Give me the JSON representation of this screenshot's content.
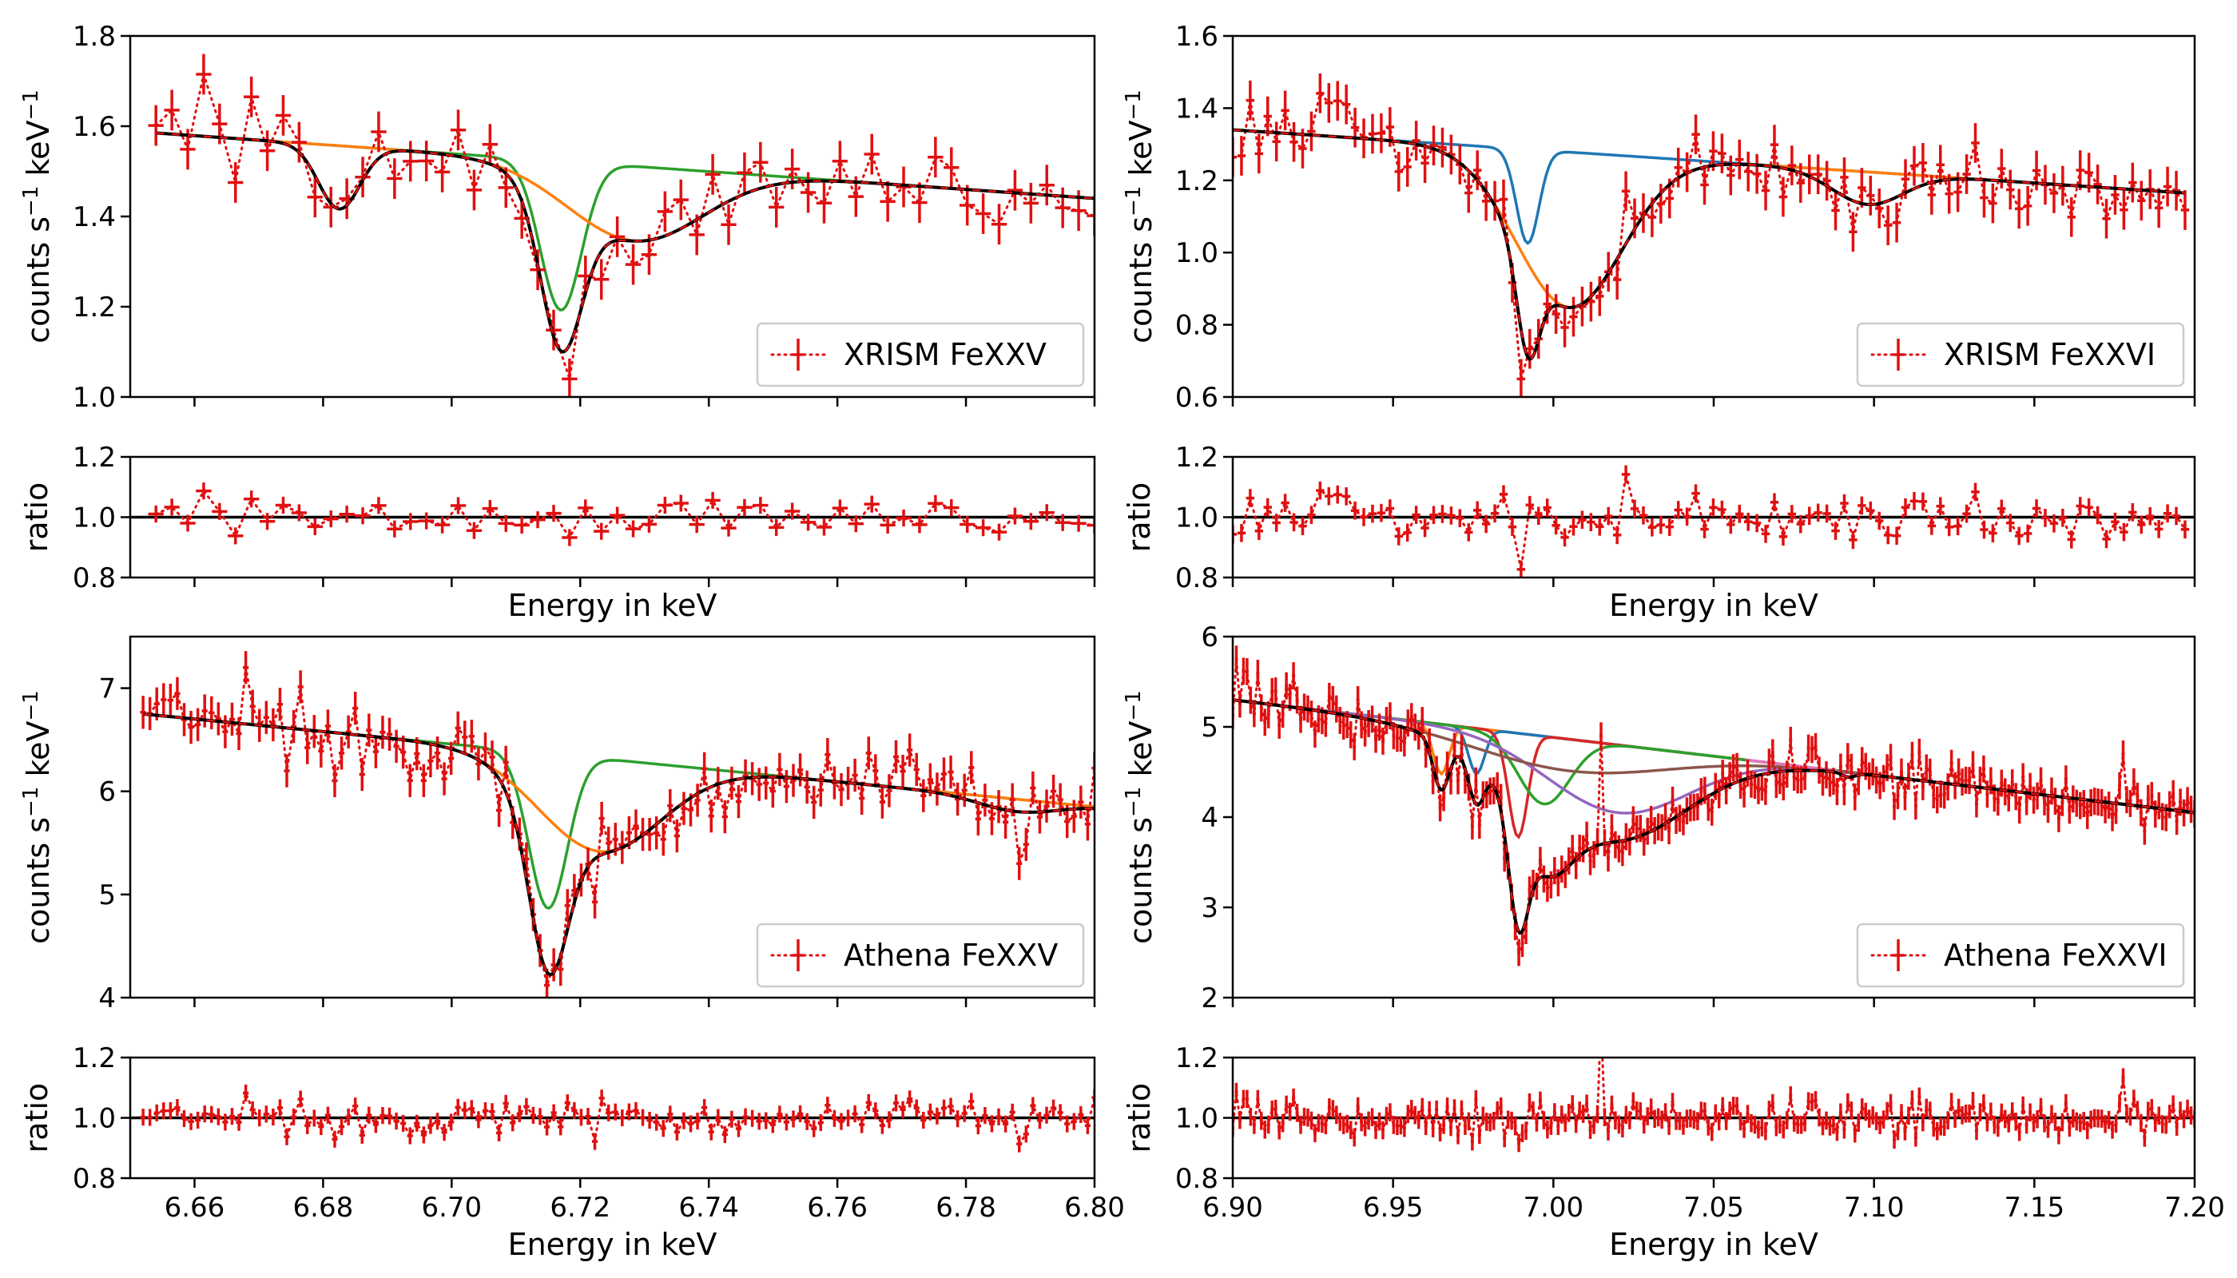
{
  "colors": {
    "data": "#e01010",
    "model": "#000000",
    "blue": "#1f77b4",
    "orange": "#ff7f0e",
    "green": "#2ca02c",
    "red": "#d62728",
    "purple": "#9467bd",
    "brown": "#8c564b",
    "pink": "#e377c2"
  },
  "chart_data": [
    {
      "type": "line",
      "panel": "top-left",
      "legend": "XRISM FeXXV",
      "legend_position": "lower-right",
      "xlabel": "Energy in keV",
      "ylabel_main": "counts s-1 keV-1",
      "ylabel_ratio": "ratio",
      "xlim": [
        6.65,
        6.8
      ],
      "xticks": [
        6.66,
        6.68,
        6.7,
        6.72,
        6.74,
        6.76,
        6.78,
        6.8
      ],
      "xtick_labels": [
        "6.66",
        "6.68",
        "6.70",
        "6.72",
        "6.74",
        "6.76",
        "6.78",
        "6.80"
      ],
      "show_xtick_labels": false,
      "ylim": [
        1.0,
        1.8
      ],
      "yticks": [
        1.0,
        1.2,
        1.4,
        1.6,
        1.8
      ],
      "ytick_labels": [
        "1.0",
        "1.2",
        "1.4",
        "1.6",
        "1.8"
      ],
      "ratio_ylim": [
        0.8,
        1.2
      ],
      "ratio_yticks": [
        0.8,
        1.0,
        1.2
      ],
      "ratio_ytick_labels": [
        "0.8",
        "1.0",
        "1.2"
      ],
      "continuum": [
        [
          6.654,
          1.585
        ],
        [
          6.8,
          1.44
        ]
      ],
      "bins": 60,
      "xerr": 0.0012,
      "yerr": 0.045,
      "ratio_yerr": 0.028,
      "noise_frac": 0.035,
      "seed": 11,
      "highlights": [
        [
          6.662,
          1.715
        ],
        [
          6.669,
          1.665
        ],
        [
          6.718,
          1.04
        ]
      ],
      "lines": [
        {
          "E": 6.6825,
          "depth": 0.14,
          "sigma": 0.0032,
          "comp": ""
        },
        {
          "E": 6.717,
          "depth": 0.33,
          "sigma": 0.0032,
          "comp": "green"
        },
        {
          "E": 6.7285,
          "depth": 0.165,
          "sigma": 0.0105,
          "comp": "orange"
        }
      ]
    },
    {
      "type": "line",
      "panel": "top-right",
      "legend": "XRISM FeXXVI",
      "legend_position": "lower-right",
      "xlabel": "Energy in keV",
      "ylabel_main": "counts s-1 keV-1",
      "ylabel_ratio": "ratio",
      "xlim": [
        6.9,
        7.2
      ],
      "xticks": [
        6.9,
        6.95,
        7.0,
        7.05,
        7.1,
        7.15,
        7.2
      ],
      "xtick_labels": [
        "6.90",
        "6.95",
        "7.00",
        "7.05",
        "7.10",
        "7.15",
        "7.20"
      ],
      "show_xtick_labels": false,
      "ylim": [
        0.6,
        1.6
      ],
      "yticks": [
        0.6,
        0.8,
        1.0,
        1.2,
        1.4,
        1.6
      ],
      "ytick_labels": [
        "0.6",
        "0.8",
        "1.0",
        "1.2",
        "1.4",
        "1.6"
      ],
      "ratio_ylim": [
        0.8,
        1.2
      ],
      "ratio_yticks": [
        0.8,
        1.0,
        1.2
      ],
      "ratio_ytick_labels": [
        "0.8",
        "1.0",
        "1.2"
      ],
      "continuum": [
        [
          6.9,
          1.34
        ],
        [
          7.197,
          1.165
        ]
      ],
      "bins": 110,
      "xerr": 0.0013,
      "yerr": 0.055,
      "ratio_yerr": 0.03,
      "noise_frac": 0.04,
      "seed": 23,
      "highlights": [
        [
          6.934,
          1.42
        ],
        [
          6.991,
          0.65
        ],
        [
          7.022,
          1.17
        ]
      ],
      "lines": [
        {
          "E": 6.992,
          "depth": 0.26,
          "sigma": 0.0035,
          "comp": "blue"
        },
        {
          "E": 7.005,
          "depth": 0.43,
          "sigma": 0.0165,
          "comp": "orange"
        },
        {
          "E": 7.098,
          "depth": 0.09,
          "sigma": 0.011,
          "comp": ""
        }
      ]
    },
    {
      "type": "line",
      "panel": "bottom-left",
      "legend": "Athena FeXXV",
      "legend_position": "lower-right",
      "xlabel": "Energy in keV",
      "ylabel_main": "counts s-1 keV-1",
      "ylabel_ratio": "ratio",
      "xlim": [
        6.65,
        6.8
      ],
      "xticks": [
        6.66,
        6.68,
        6.7,
        6.72,
        6.74,
        6.76,
        6.78,
        6.8
      ],
      "xtick_labels": [
        "6.66",
        "6.68",
        "6.70",
        "6.72",
        "6.74",
        "6.76",
        "6.78",
        "6.80"
      ],
      "show_xtick_labels": true,
      "ylim": [
        4.0,
        7.5
      ],
      "yticks": [
        4,
        5,
        6,
        7
      ],
      "ytick_labels": [
        "4",
        "5",
        "6",
        "7"
      ],
      "ratio_ylim": [
        0.8,
        1.2
      ],
      "ratio_yticks": [
        0.8,
        1.0,
        1.2
      ],
      "ratio_ytick_labels": [
        "0.8",
        "1.0",
        "1.2"
      ],
      "continuum": [
        [
          6.652,
          6.75
        ],
        [
          6.8,
          5.85
        ]
      ],
      "bins": 140,
      "xerr": 0.00045,
      "yerr": 0.16,
      "ratio_yerr": 0.028,
      "noise_frac": 0.03,
      "seed": 37,
      "highlights": [
        [
          6.668,
          7.2
        ],
        [
          6.715,
          4.12
        ],
        [
          6.788,
          5.3
        ]
      ],
      "lines": [
        {
          "E": 6.715,
          "depth": 1.5,
          "sigma": 0.003,
          "comp": "green"
        },
        {
          "E": 6.723,
          "depth": 0.9,
          "sigma": 0.0095,
          "comp": "orange"
        },
        {
          "E": 6.788,
          "depth": 0.12,
          "sigma": 0.006,
          "comp": ""
        }
      ]
    },
    {
      "type": "line",
      "panel": "bottom-right",
      "legend": "Athena FeXXVI",
      "legend_position": "lower-right",
      "xlabel": "Energy in keV",
      "ylabel_main": "counts s-1 keV-1",
      "ylabel_ratio": "ratio",
      "xlim": [
        6.9,
        7.2
      ],
      "xticks": [
        6.9,
        6.95,
        7.0,
        7.05,
        7.1,
        7.15,
        7.2
      ],
      "xtick_labels": [
        "6.90",
        "6.95",
        "7.00",
        "7.05",
        "7.10",
        "7.15",
        "7.20"
      ],
      "show_xtick_labels": true,
      "ylim": [
        2.0,
        6.0
      ],
      "yticks": [
        2,
        3,
        4,
        5,
        6
      ],
      "ytick_labels": [
        "2",
        "3",
        "4",
        "5",
        "6"
      ],
      "ratio_ylim": [
        0.8,
        1.2
      ],
      "ratio_yticks": [
        0.8,
        1.0,
        1.2
      ],
      "ratio_ytick_labels": [
        "0.8",
        "1.0",
        "1.2"
      ],
      "continuum": [
        [
          6.9,
          5.3
        ],
        [
          7.2,
          4.05
        ]
      ],
      "bins": 270,
      "xerr": 0.0005,
      "yerr": 0.15,
      "ratio_yerr": 0.03,
      "noise_frac": 0.03,
      "seed": 53,
      "highlights": [
        [
          6.901,
          5.75
        ],
        [
          6.989,
          2.5
        ],
        [
          7.015,
          4.9
        ],
        [
          7.178,
          4.7
        ]
      ],
      "lines": [
        {
          "E": 6.965,
          "depth": 0.55,
          "sigma": 0.0025,
          "comp": "orange"
        },
        {
          "E": 6.976,
          "depth": 0.5,
          "sigma": 0.0025,
          "comp": "blue"
        },
        {
          "E": 6.989,
          "depth": 1.15,
          "sigma": 0.003,
          "comp": "red"
        },
        {
          "E": 6.997,
          "depth": 0.75,
          "sigma": 0.008,
          "comp": "green"
        },
        {
          "E": 7.02,
          "depth": 0.75,
          "sigma": 0.022,
          "comp": "purple"
        },
        {
          "E": 7.005,
          "depth": 0.35,
          "sigma": 0.03,
          "comp": "brown"
        },
        {
          "E": 7.092,
          "depth": 0.05,
          "sigma": 0.002,
          "comp": "pink"
        }
      ]
    }
  ]
}
